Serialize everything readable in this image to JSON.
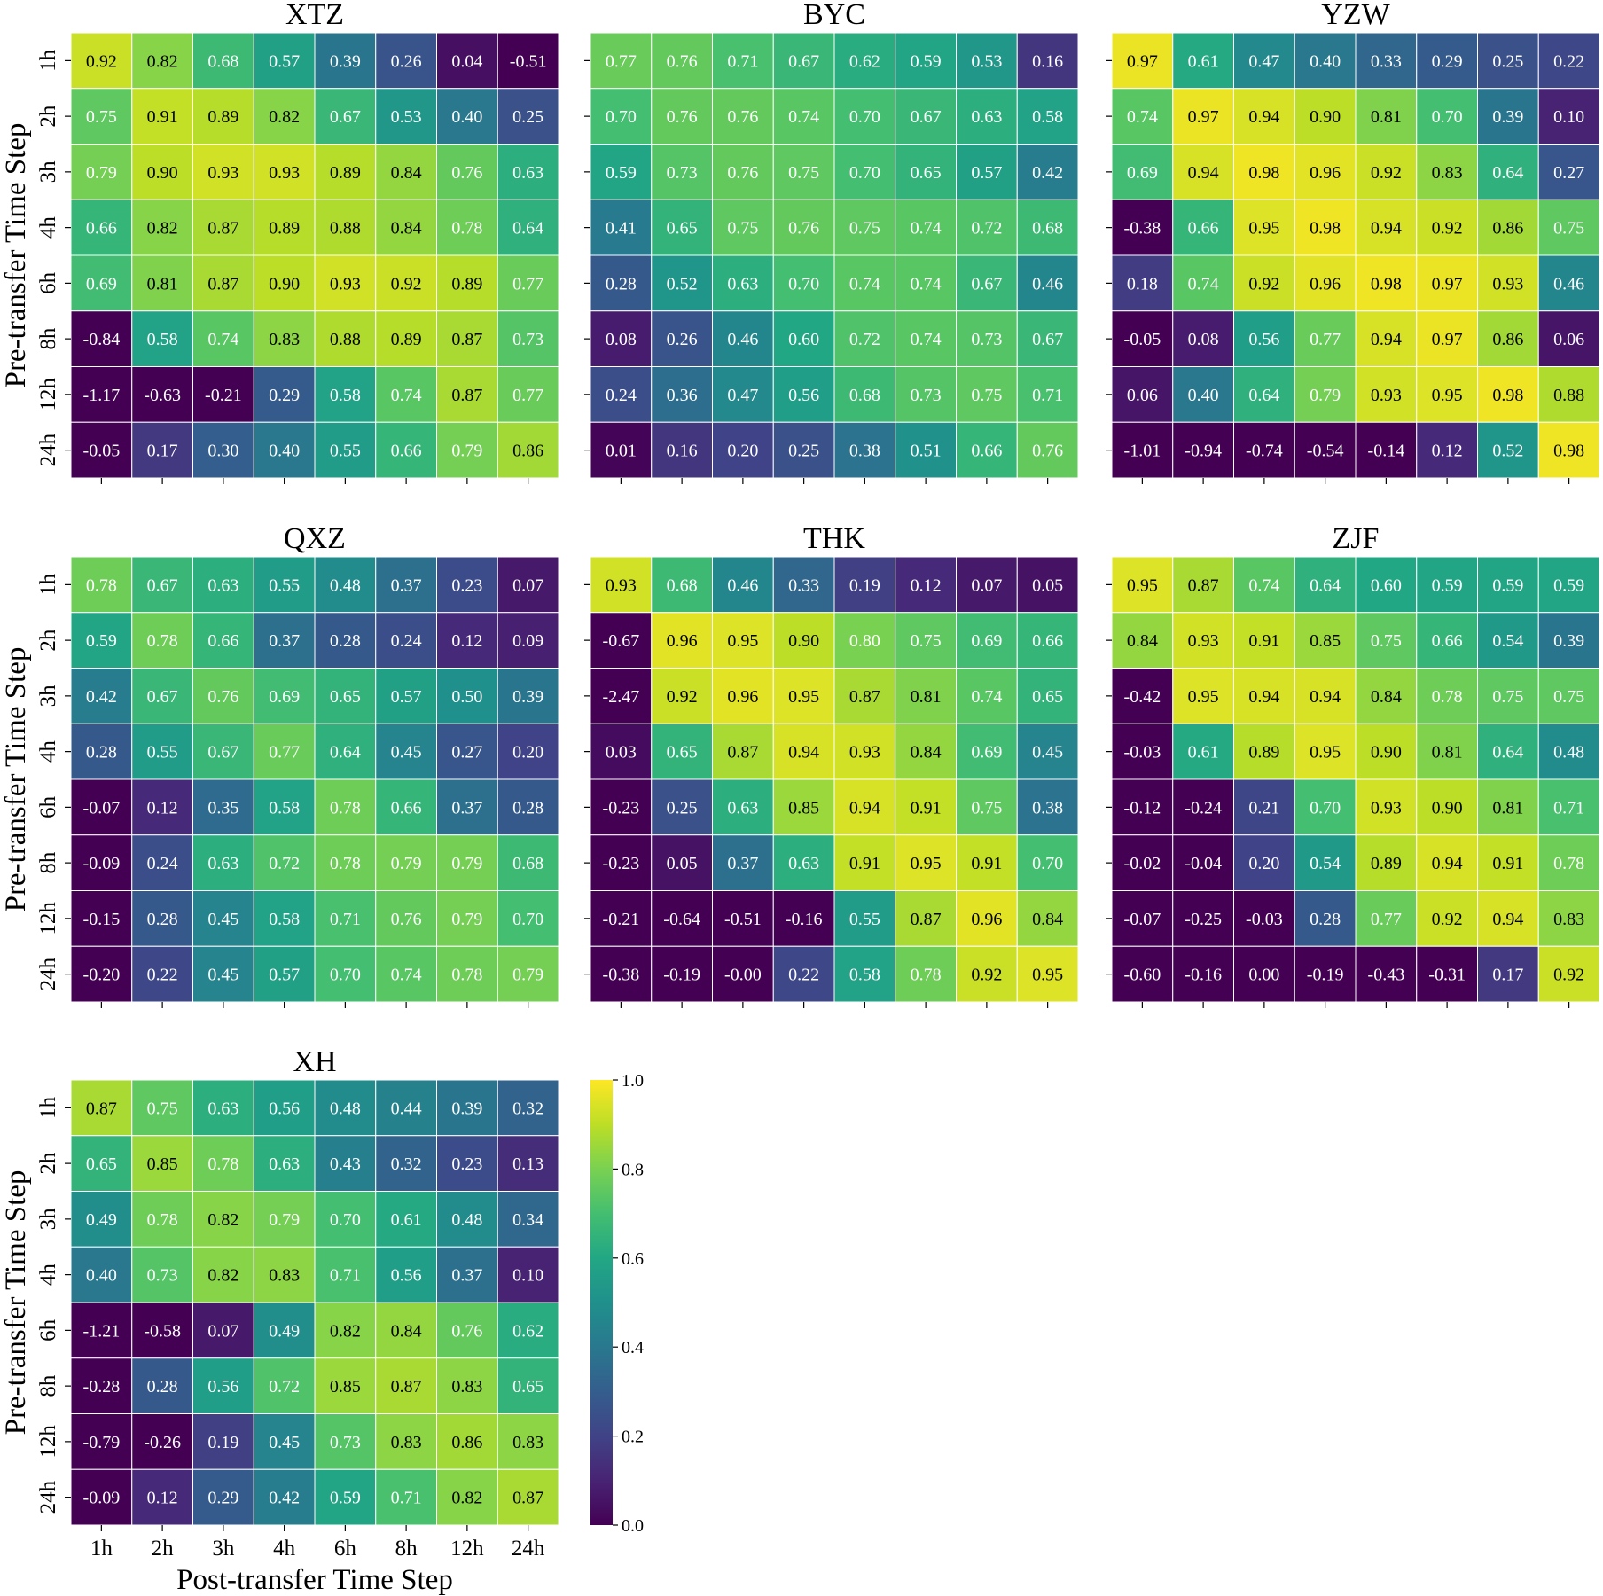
{
  "chart_data": [
    {
      "type": "heatmap",
      "title": "XTZ",
      "ylabel": "Pre-transfer Time Step",
      "xlabel": "",
      "row_labels": [
        "1h",
        "2h",
        "3h",
        "4h",
        "6h",
        "8h",
        "12h",
        "24h"
      ],
      "col_labels": [],
      "values": [
        [
          "0.92",
          "0.82",
          "0.68",
          "0.57",
          "0.39",
          "0.26",
          "0.04",
          "-0.51"
        ],
        [
          "0.75",
          "0.91",
          "0.89",
          "0.82",
          "0.67",
          "0.53",
          "0.40",
          "0.25"
        ],
        [
          "0.79",
          "0.90",
          "0.93",
          "0.93",
          "0.89",
          "0.84",
          "0.76",
          "0.63"
        ],
        [
          "0.66",
          "0.82",
          "0.87",
          "0.89",
          "0.88",
          "0.84",
          "0.78",
          "0.64"
        ],
        [
          "0.69",
          "0.81",
          "0.87",
          "0.90",
          "0.93",
          "0.92",
          "0.89",
          "0.77"
        ],
        [
          "-0.84",
          "0.58",
          "0.74",
          "0.83",
          "0.88",
          "0.89",
          "0.87",
          "0.73"
        ],
        [
          "-1.17",
          "-0.63",
          "-0.21",
          "0.29",
          "0.58",
          "0.74",
          "0.87",
          "0.77"
        ],
        [
          "-0.05",
          "0.17",
          "0.30",
          "0.40",
          "0.55",
          "0.66",
          "0.79",
          "0.86"
        ]
      ]
    },
    {
      "type": "heatmap",
      "title": "BYC",
      "ylabel": "",
      "xlabel": "",
      "row_labels": [],
      "col_labels": [],
      "values": [
        [
          "0.77",
          "0.76",
          "0.71",
          "0.67",
          "0.62",
          "0.59",
          "0.53",
          "0.16"
        ],
        [
          "0.70",
          "0.76",
          "0.76",
          "0.74",
          "0.70",
          "0.67",
          "0.63",
          "0.58"
        ],
        [
          "0.59",
          "0.73",
          "0.76",
          "0.75",
          "0.70",
          "0.65",
          "0.57",
          "0.42"
        ],
        [
          "0.41",
          "0.65",
          "0.75",
          "0.76",
          "0.75",
          "0.74",
          "0.72",
          "0.68"
        ],
        [
          "0.28",
          "0.52",
          "0.63",
          "0.70",
          "0.74",
          "0.74",
          "0.67",
          "0.46"
        ],
        [
          "0.08",
          "0.26",
          "0.46",
          "0.60",
          "0.72",
          "0.74",
          "0.73",
          "0.67"
        ],
        [
          "0.24",
          "0.36",
          "0.47",
          "0.56",
          "0.68",
          "0.73",
          "0.75",
          "0.71"
        ],
        [
          "0.01",
          "0.16",
          "0.20",
          "0.25",
          "0.38",
          "0.51",
          "0.66",
          "0.76"
        ]
      ]
    },
    {
      "type": "heatmap",
      "title": "YZW",
      "ylabel": "",
      "xlabel": "",
      "row_labels": [],
      "col_labels": [],
      "values": [
        [
          "0.97",
          "0.61",
          "0.47",
          "0.40",
          "0.33",
          "0.29",
          "0.25",
          "0.22"
        ],
        [
          "0.74",
          "0.97",
          "0.94",
          "0.90",
          "0.81",
          "0.70",
          "0.39",
          "0.10"
        ],
        [
          "0.69",
          "0.94",
          "0.98",
          "0.96",
          "0.92",
          "0.83",
          "0.64",
          "0.27"
        ],
        [
          "-0.38",
          "0.66",
          "0.95",
          "0.98",
          "0.94",
          "0.92",
          "0.86",
          "0.75"
        ],
        [
          "0.18",
          "0.74",
          "0.92",
          "0.96",
          "0.98",
          "0.97",
          "0.93",
          "0.46"
        ],
        [
          "-0.05",
          "0.08",
          "0.56",
          "0.77",
          "0.94",
          "0.97",
          "0.86",
          "0.06"
        ],
        [
          "0.06",
          "0.40",
          "0.64",
          "0.79",
          "0.93",
          "0.95",
          "0.98",
          "0.88"
        ],
        [
          "-1.01",
          "-0.94",
          "-0.74",
          "-0.54",
          "-0.14",
          "0.12",
          "0.52",
          "0.98"
        ]
      ]
    },
    {
      "type": "heatmap",
      "title": "QXZ",
      "ylabel": "Pre-transfer Time Step",
      "xlabel": "",
      "row_labels": [
        "1h",
        "2h",
        "3h",
        "4h",
        "6h",
        "8h",
        "12h",
        "24h"
      ],
      "col_labels": [],
      "values": [
        [
          "0.78",
          "0.67",
          "0.63",
          "0.55",
          "0.48",
          "0.37",
          "0.23",
          "0.07"
        ],
        [
          "0.59",
          "0.78",
          "0.66",
          "0.37",
          "0.28",
          "0.24",
          "0.12",
          "0.09"
        ],
        [
          "0.42",
          "0.67",
          "0.76",
          "0.69",
          "0.65",
          "0.57",
          "0.50",
          "0.39"
        ],
        [
          "0.28",
          "0.55",
          "0.67",
          "0.77",
          "0.64",
          "0.45",
          "0.27",
          "0.20"
        ],
        [
          "-0.07",
          "0.12",
          "0.35",
          "0.58",
          "0.78",
          "0.66",
          "0.37",
          "0.28"
        ],
        [
          "-0.09",
          "0.24",
          "0.63",
          "0.72",
          "0.78",
          "0.79",
          "0.79",
          "0.68"
        ],
        [
          "-0.15",
          "0.28",
          "0.45",
          "0.58",
          "0.71",
          "0.76",
          "0.79",
          "0.70"
        ],
        [
          "-0.20",
          "0.22",
          "0.45",
          "0.57",
          "0.70",
          "0.74",
          "0.78",
          "0.79"
        ]
      ]
    },
    {
      "type": "heatmap",
      "title": "THK",
      "ylabel": "",
      "xlabel": "",
      "row_labels": [],
      "col_labels": [],
      "values": [
        [
          "0.93",
          "0.68",
          "0.46",
          "0.33",
          "0.19",
          "0.12",
          "0.07",
          "0.05"
        ],
        [
          "-0.67",
          "0.96",
          "0.95",
          "0.90",
          "0.80",
          "0.75",
          "0.69",
          "0.66"
        ],
        [
          "-2.47",
          "0.92",
          "0.96",
          "0.95",
          "0.87",
          "0.81",
          "0.74",
          "0.65"
        ],
        [
          "0.03",
          "0.65",
          "0.87",
          "0.94",
          "0.93",
          "0.84",
          "0.69",
          "0.45"
        ],
        [
          "-0.23",
          "0.25",
          "0.63",
          "0.85",
          "0.94",
          "0.91",
          "0.75",
          "0.38"
        ],
        [
          "-0.23",
          "0.05",
          "0.37",
          "0.63",
          "0.91",
          "0.95",
          "0.91",
          "0.70"
        ],
        [
          "-0.21",
          "-0.64",
          "-0.51",
          "-0.16",
          "0.55",
          "0.87",
          "0.96",
          "0.84"
        ],
        [
          "-0.38",
          "-0.19",
          "-0.00",
          "0.22",
          "0.58",
          "0.78",
          "0.92",
          "0.95"
        ]
      ]
    },
    {
      "type": "heatmap",
      "title": "ZJF",
      "ylabel": "",
      "xlabel": "",
      "row_labels": [],
      "col_labels": [],
      "values": [
        [
          "0.95",
          "0.87",
          "0.74",
          "0.64",
          "0.60",
          "0.59",
          "0.59",
          "0.59"
        ],
        [
          "0.84",
          "0.93",
          "0.91",
          "0.85",
          "0.75",
          "0.66",
          "0.54",
          "0.39"
        ],
        [
          "-0.42",
          "0.95",
          "0.94",
          "0.94",
          "0.84",
          "0.78",
          "0.75",
          "0.75"
        ],
        [
          "-0.03",
          "0.61",
          "0.89",
          "0.95",
          "0.90",
          "0.81",
          "0.64",
          "0.48"
        ],
        [
          "-0.12",
          "-0.24",
          "0.21",
          "0.70",
          "0.93",
          "0.90",
          "0.81",
          "0.71"
        ],
        [
          "-0.02",
          "-0.04",
          "0.20",
          "0.54",
          "0.89",
          "0.94",
          "0.91",
          "0.78"
        ],
        [
          "-0.07",
          "-0.25",
          "-0.03",
          "0.28",
          "0.77",
          "0.92",
          "0.94",
          "0.83"
        ],
        [
          "-0.60",
          "-0.16",
          "0.00",
          "-0.19",
          "-0.43",
          "-0.31",
          "0.17",
          "0.92"
        ]
      ]
    },
    {
      "type": "heatmap",
      "title": "XH",
      "ylabel": "Pre-transfer Time Step",
      "xlabel": "Post-transfer Time Step",
      "row_labels": [
        "1h",
        "2h",
        "3h",
        "4h",
        "6h",
        "8h",
        "12h",
        "24h"
      ],
      "col_labels": [
        "1h",
        "2h",
        "3h",
        "4h",
        "6h",
        "8h",
        "12h",
        "24h"
      ],
      "values": [
        [
          "0.87",
          "0.75",
          "0.63",
          "0.56",
          "0.48",
          "0.44",
          "0.39",
          "0.32"
        ],
        [
          "0.65",
          "0.85",
          "0.78",
          "0.63",
          "0.43",
          "0.32",
          "0.23",
          "0.13"
        ],
        [
          "0.49",
          "0.78",
          "0.82",
          "0.79",
          "0.70",
          "0.61",
          "0.48",
          "0.34"
        ],
        [
          "0.40",
          "0.73",
          "0.82",
          "0.83",
          "0.71",
          "0.56",
          "0.37",
          "0.10"
        ],
        [
          "-1.21",
          "-0.58",
          "0.07",
          "0.49",
          "0.82",
          "0.84",
          "0.76",
          "0.62"
        ],
        [
          "-0.28",
          "0.28",
          "0.56",
          "0.72",
          "0.85",
          "0.87",
          "0.83",
          "0.65"
        ],
        [
          "-0.79",
          "-0.26",
          "0.19",
          "0.45",
          "0.73",
          "0.83",
          "0.86",
          "0.83"
        ],
        [
          "-0.09",
          "0.12",
          "0.29",
          "0.42",
          "0.59",
          "0.71",
          "0.82",
          "0.87"
        ]
      ]
    }
  ],
  "colorbar": {
    "colormap": "viridis",
    "range": [
      0.0,
      1.0
    ],
    "ticks": [
      "0.0",
      "0.2",
      "0.4",
      "0.6",
      "0.8",
      "1.0"
    ]
  }
}
